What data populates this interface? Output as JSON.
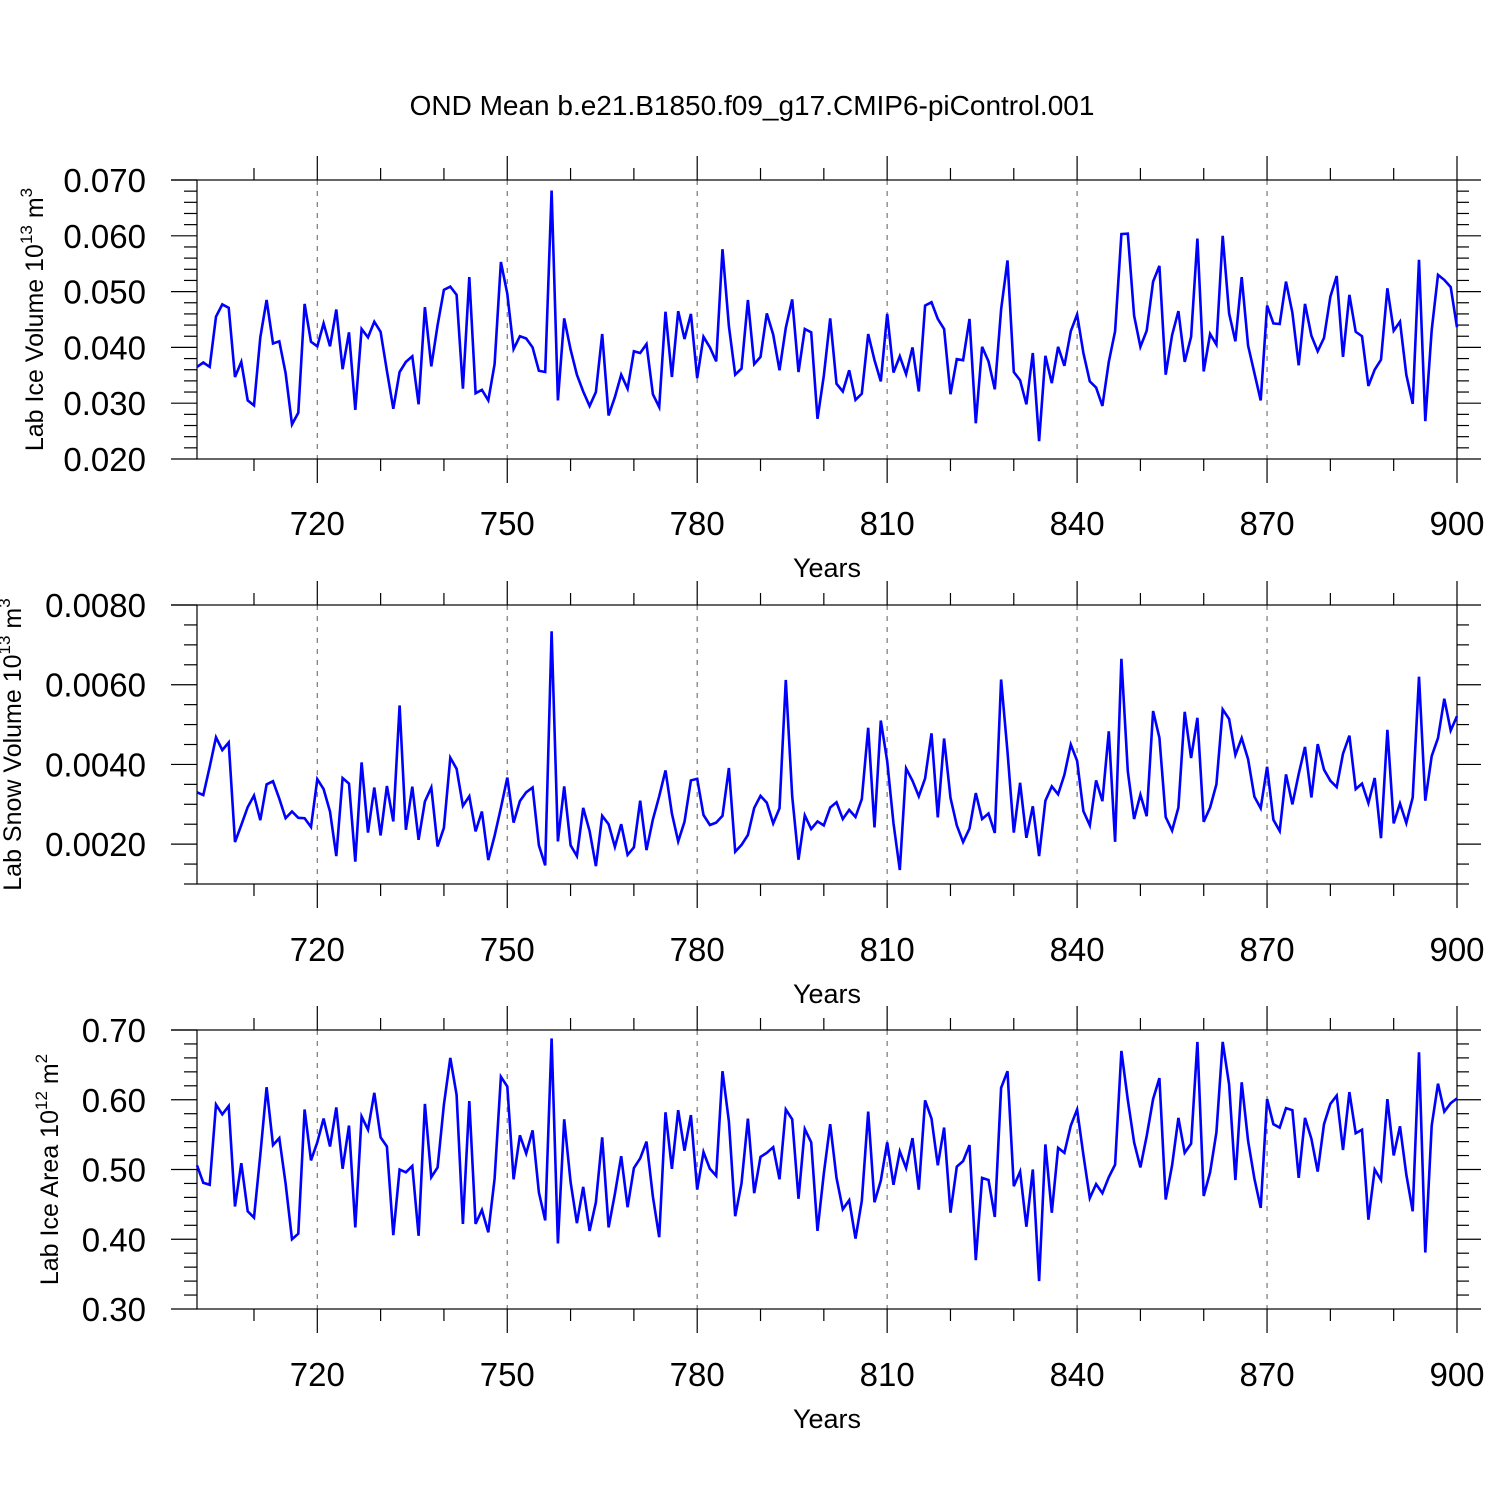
{
  "title": "OND Mean b.e21.B1850.f09_g17.CMIP6-piControl.001",
  "colors": {
    "series": "#0000ff",
    "grid": "#777777",
    "axis": "#000000"
  },
  "chart_data": [
    {
      "type": "line",
      "title": "OND Mean b.e21.B1850.f09_g17.CMIP6-piControl.001",
      "ylabel": "Lab Ice Volume",
      "ylabel_power": "13",
      "ylabel_unit_sup": "3",
      "xlabel": "Years",
      "xlim": [
        701,
        900
      ],
      "ylim": [
        0.02,
        0.07
      ],
      "grid": "dashed vertical at major x ticks",
      "x_start": 701,
      "xticks": [
        720,
        750,
        780,
        810,
        840,
        870,
        900
      ],
      "xtick_labels": [
        "720",
        "750",
        "780",
        "810",
        "840",
        "870",
        "900"
      ],
      "yticks": [
        0.02,
        0.03,
        0.04,
        0.05,
        0.06,
        0.07
      ],
      "ytick_labels": [
        "0.020",
        "0.030",
        "0.040",
        "0.050",
        "0.060",
        "0.070"
      ],
      "ymin_ticks": [
        0.022,
        0.024,
        0.026,
        0.028,
        0.032,
        0.034,
        0.036,
        0.038,
        0.042,
        0.044,
        0.046,
        0.048,
        0.052,
        0.054,
        0.056,
        0.058,
        0.062,
        0.064,
        0.066,
        0.068
      ],
      "series": [
        {
          "name": "Lab Ice Volume",
          "values": [
            0.0365,
            0.0373,
            0.0365,
            0.0455,
            0.0477,
            0.0471,
            0.0347,
            0.0374,
            0.0305,
            0.0296,
            0.0418,
            0.0485,
            0.0407,
            0.0411,
            0.0354,
            0.0262,
            0.0283,
            0.0478,
            0.041,
            0.0402,
            0.0443,
            0.0402,
            0.0468,
            0.0361,
            0.0427,
            0.0288,
            0.0433,
            0.0418,
            0.0446,
            0.0428,
            0.0358,
            0.029,
            0.0356,
            0.0374,
            0.0384,
            0.0298,
            0.0472,
            0.0366,
            0.044,
            0.0503,
            0.0509,
            0.0494,
            0.0326,
            0.0526,
            0.0318,
            0.0324,
            0.0305,
            0.037,
            0.0553,
            0.0496,
            0.0397,
            0.042,
            0.0416,
            0.04,
            0.0358,
            0.0356,
            0.0681,
            0.0305,
            0.0452,
            0.0396,
            0.0351,
            0.0321,
            0.0295,
            0.032,
            0.0424,
            0.0278,
            0.0311,
            0.0351,
            0.0326,
            0.0393,
            0.039,
            0.0406,
            0.0316,
            0.0293,
            0.0464,
            0.0347,
            0.0465,
            0.0415,
            0.046,
            0.0345,
            0.0419,
            0.04,
            0.0375,
            0.0576,
            0.0438,
            0.0351,
            0.0362,
            0.0485,
            0.037,
            0.0383,
            0.0461,
            0.0423,
            0.0359,
            0.0435,
            0.0486,
            0.0356,
            0.0433,
            0.0427,
            0.0272,
            0.0349,
            0.0452,
            0.0335,
            0.0321,
            0.0359,
            0.0306,
            0.0317,
            0.0424,
            0.0377,
            0.0339,
            0.046,
            0.0355,
            0.0384,
            0.0352,
            0.04,
            0.0321,
            0.0475,
            0.0481,
            0.0451,
            0.0433,
            0.0316,
            0.0379,
            0.0377,
            0.0451,
            0.0264,
            0.0401,
            0.0375,
            0.0325,
            0.0468,
            0.0556,
            0.0356,
            0.0341,
            0.0298,
            0.039,
            0.0232,
            0.0385,
            0.0336,
            0.0401,
            0.0367,
            0.0429,
            0.0459,
            0.039,
            0.0339,
            0.0328,
            0.0295,
            0.0374,
            0.0429,
            0.0603,
            0.0604,
            0.0457,
            0.0401,
            0.043,
            0.0518,
            0.0546,
            0.0351,
            0.0422,
            0.0465,
            0.0374,
            0.0419,
            0.0595,
            0.0357,
            0.0424,
            0.0405,
            0.06,
            0.0461,
            0.0411,
            0.0526,
            0.0403,
            0.0354,
            0.0305,
            0.0475,
            0.0443,
            0.0442,
            0.0518,
            0.0462,
            0.0368,
            0.0478,
            0.0421,
            0.0393,
            0.0417,
            0.0491,
            0.0528,
            0.0383,
            0.0494,
            0.0428,
            0.042,
            0.0331,
            0.036,
            0.0378,
            0.0506,
            0.043,
            0.0446,
            0.0351,
            0.0299,
            0.0557,
            0.0268,
            0.0431,
            0.053,
            0.0521,
            0.0508,
            0.0436
          ]
        }
      ]
    },
    {
      "type": "line",
      "ylabel": "Lab Snow Volume",
      "ylabel_power": "13",
      "ylabel_unit_sup": "3",
      "xlabel": "Years",
      "xlim": [
        701,
        900
      ],
      "ylim": [
        0.001,
        0.008
      ],
      "grid": "dashed vertical at major x ticks",
      "x_start": 701,
      "xticks": [
        720,
        750,
        780,
        810,
        840,
        870,
        900
      ],
      "xtick_labels": [
        "720",
        "750",
        "780",
        "810",
        "840",
        "870",
        "900"
      ],
      "yticks": [
        0.002,
        0.004,
        0.006,
        0.008
      ],
      "ytick_labels": [
        "0.0020",
        "0.0040",
        "0.0060",
        "0.0080"
      ],
      "ymin_ticks": [
        0.001,
        0.0015,
        0.0025,
        0.003,
        0.0035,
        0.0045,
        0.005,
        0.0055,
        0.0065,
        0.007,
        0.0075
      ],
      "series": [
        {
          "name": "Lab Snow Volume",
          "values": [
            0.0033,
            0.00323,
            0.00394,
            0.00468,
            0.00436,
            0.00455,
            0.00205,
            0.00248,
            0.00293,
            0.00322,
            0.0026,
            0.0035,
            0.00358,
            0.00314,
            0.00265,
            0.00282,
            0.00266,
            0.00265,
            0.00243,
            0.00363,
            0.00338,
            0.00282,
            0.0017,
            0.00366,
            0.00352,
            0.00156,
            0.00405,
            0.00229,
            0.00342,
            0.00222,
            0.00346,
            0.00257,
            0.00548,
            0.00236,
            0.00344,
            0.00211,
            0.00307,
            0.00342,
            0.00194,
            0.00241,
            0.00417,
            0.00389,
            0.00296,
            0.0032,
            0.00232,
            0.00282,
            0.0016,
            0.00221,
            0.00291,
            0.00367,
            0.00254,
            0.00308,
            0.0033,
            0.00342,
            0.00197,
            0.00147,
            0.00734,
            0.00207,
            0.00345,
            0.00197,
            0.0017,
            0.00291,
            0.00233,
            0.00145,
            0.00271,
            0.0025,
            0.00193,
            0.0025,
            0.00173,
            0.00192,
            0.00309,
            0.00185,
            0.00262,
            0.0032,
            0.00385,
            0.00277,
            0.00207,
            0.00256,
            0.0036,
            0.00364,
            0.00273,
            0.00248,
            0.00254,
            0.00271,
            0.00391,
            0.00181,
            0.00198,
            0.00223,
            0.00291,
            0.00321,
            0.00304,
            0.00252,
            0.0029,
            0.00612,
            0.0032,
            0.00161,
            0.00272,
            0.00238,
            0.00257,
            0.00247,
            0.00292,
            0.00305,
            0.00263,
            0.00286,
            0.00268,
            0.00313,
            0.00492,
            0.00242,
            0.0051,
            0.00408,
            0.00252,
            0.00135,
            0.0039,
            0.00359,
            0.0032,
            0.00365,
            0.00478,
            0.00267,
            0.00465,
            0.00316,
            0.00247,
            0.00205,
            0.00239,
            0.00328,
            0.00263,
            0.00277,
            0.00228,
            0.00613,
            0.00432,
            0.00229,
            0.00354,
            0.00216,
            0.00295,
            0.0017,
            0.00309,
            0.00345,
            0.00325,
            0.00374,
            0.0045,
            0.00409,
            0.00283,
            0.00247,
            0.0036,
            0.00308,
            0.00483,
            0.00206,
            0.00665,
            0.00383,
            0.00263,
            0.00324,
            0.0027,
            0.00534,
            0.00467,
            0.00268,
            0.00234,
            0.00292,
            0.00532,
            0.00416,
            0.00517,
            0.00256,
            0.00292,
            0.0035,
            0.00538,
            0.00514,
            0.00424,
            0.00466,
            0.00413,
            0.00319,
            0.0029,
            0.00394,
            0.00261,
            0.00233,
            0.00375,
            0.003,
            0.00376,
            0.00444,
            0.00317,
            0.00451,
            0.00387,
            0.00359,
            0.00343,
            0.00427,
            0.00472,
            0.00338,
            0.00352,
            0.00303,
            0.00366,
            0.00215,
            0.00487,
            0.00252,
            0.00302,
            0.00253,
            0.00317,
            0.0062,
            0.00309,
            0.00421,
            0.00466,
            0.00565,
            0.00485,
            0.00521
          ]
        }
      ]
    },
    {
      "type": "line",
      "ylabel": "Lab Ice Area",
      "ylabel_power": "12",
      "ylabel_unit_sup": "2",
      "xlabel": "Years",
      "xlim": [
        701,
        900
      ],
      "ylim": [
        0.3,
        0.7
      ],
      "grid": "dashed vertical at major x ticks",
      "x_start": 701,
      "xticks": [
        720,
        750,
        780,
        810,
        840,
        870,
        900
      ],
      "xtick_labels": [
        "720",
        "750",
        "780",
        "810",
        "840",
        "870",
        "900"
      ],
      "yticks": [
        0.3,
        0.4,
        0.5,
        0.6,
        0.7
      ],
      "ytick_labels": [
        "0.30",
        "0.40",
        "0.50",
        "0.60",
        "0.70"
      ],
      "ymin_ticks": [
        0.32,
        0.34,
        0.36,
        0.38,
        0.42,
        0.44,
        0.46,
        0.48,
        0.52,
        0.54,
        0.56,
        0.58,
        0.62,
        0.64,
        0.66,
        0.68
      ],
      "series": [
        {
          "name": "Lab Ice Area",
          "values": [
            0.506,
            0.481,
            0.478,
            0.593,
            0.579,
            0.591,
            0.447,
            0.509,
            0.44,
            0.431,
            0.521,
            0.618,
            0.535,
            0.545,
            0.48,
            0.4,
            0.408,
            0.586,
            0.513,
            0.539,
            0.573,
            0.533,
            0.589,
            0.501,
            0.563,
            0.417,
            0.576,
            0.557,
            0.61,
            0.546,
            0.533,
            0.406,
            0.5,
            0.496,
            0.505,
            0.405,
            0.594,
            0.489,
            0.503,
            0.593,
            0.66,
            0.607,
            0.422,
            0.598,
            0.422,
            0.442,
            0.41,
            0.487,
            0.633,
            0.619,
            0.486,
            0.549,
            0.523,
            0.556,
            0.467,
            0.427,
            0.688,
            0.394,
            0.572,
            0.482,
            0.423,
            0.475,
            0.412,
            0.453,
            0.546,
            0.417,
            0.465,
            0.519,
            0.446,
            0.502,
            0.516,
            0.54,
            0.461,
            0.403,
            0.582,
            0.501,
            0.585,
            0.527,
            0.578,
            0.471,
            0.525,
            0.501,
            0.491,
            0.641,
            0.569,
            0.433,
            0.48,
            0.573,
            0.466,
            0.518,
            0.524,
            0.532,
            0.486,
            0.586,
            0.572,
            0.458,
            0.558,
            0.539,
            0.412,
            0.494,
            0.565,
            0.488,
            0.443,
            0.456,
            0.401,
            0.455,
            0.583,
            0.453,
            0.484,
            0.539,
            0.478,
            0.526,
            0.502,
            0.545,
            0.471,
            0.599,
            0.573,
            0.506,
            0.56,
            0.438,
            0.504,
            0.512,
            0.535,
            0.37,
            0.488,
            0.485,
            0.432,
            0.617,
            0.641,
            0.476,
            0.497,
            0.418,
            0.5,
            0.34,
            0.536,
            0.438,
            0.531,
            0.524,
            0.563,
            0.586,
            0.521,
            0.459,
            0.479,
            0.466,
            0.489,
            0.507,
            0.67,
            0.6,
            0.539,
            0.503,
            0.548,
            0.601,
            0.631,
            0.457,
            0.506,
            0.574,
            0.524,
            0.537,
            0.683,
            0.462,
            0.496,
            0.553,
            0.683,
            0.622,
            0.485,
            0.625,
            0.541,
            0.487,
            0.445,
            0.601,
            0.565,
            0.56,
            0.588,
            0.585,
            0.488,
            0.574,
            0.544,
            0.497,
            0.565,
            0.594,
            0.606,
            0.528,
            0.611,
            0.552,
            0.557,
            0.428,
            0.5,
            0.485,
            0.601,
            0.52,
            0.562,
            0.493,
            0.44,
            0.668,
            0.381,
            0.563,
            0.623,
            0.583,
            0.595,
            0.602
          ]
        }
      ]
    }
  ]
}
